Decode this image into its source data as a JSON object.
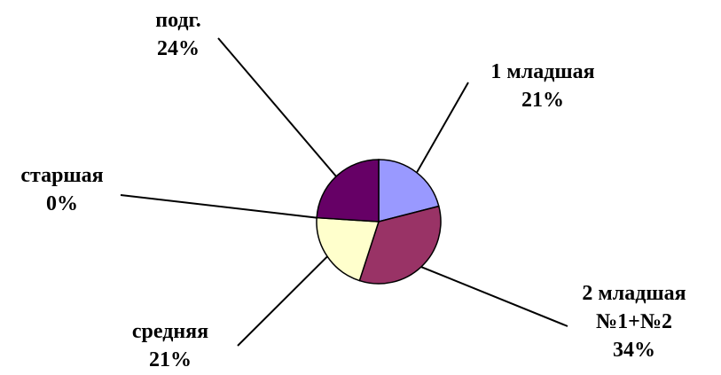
{
  "chart_data": {
    "type": "pie",
    "title": "",
    "slices": [
      {
        "label_lines": [
          "1 младшая",
          "21%"
        ],
        "value": 21,
        "color": "#9999FF"
      },
      {
        "label_lines": [
          "2 младшая",
          "№1+№2",
          "34%"
        ],
        "value": 34,
        "color": "#993366"
      },
      {
        "label_lines": [
          "средняя",
          "21%"
        ],
        "value": 21,
        "color": "#FFFFCC"
      },
      {
        "label_lines": [
          "старшая",
          "0%"
        ],
        "value": 0,
        "color": "#CCFFFF"
      },
      {
        "label_lines": [
          "подг.",
          "24%"
        ],
        "value": 24,
        "color": "#660066"
      }
    ]
  }
}
